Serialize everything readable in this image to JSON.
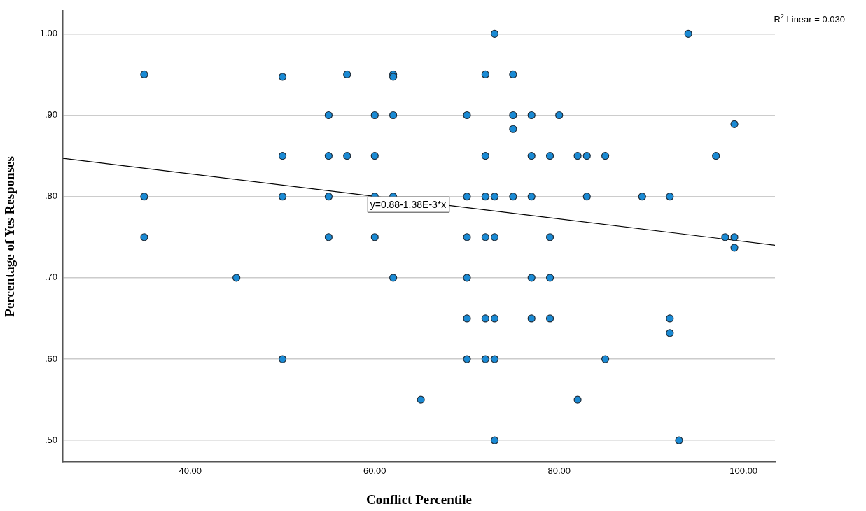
{
  "chart_data": {
    "type": "scatter",
    "xlabel": "Conflict Percentile",
    "ylabel": "Percentage of Yes Responses",
    "xlim": [
      26.2,
      103.4
    ],
    "ylim": [
      0.4735,
      1.028
    ],
    "xticks": [
      {
        "value": 40,
        "label": "40.00"
      },
      {
        "value": 60,
        "label": "60.00"
      },
      {
        "value": 80,
        "label": "80.00"
      },
      {
        "value": 100,
        "label": "100.00"
      }
    ],
    "yticks": [
      {
        "value": 0.5,
        "label": ".50"
      },
      {
        "value": 0.6,
        "label": ".60"
      },
      {
        "value": 0.7,
        "label": ".70"
      },
      {
        "value": 0.8,
        "label": ".80"
      },
      {
        "value": 0.9,
        "label": ".90"
      },
      {
        "value": 1.0,
        "label": "1.00"
      }
    ],
    "grid": "y",
    "legend": false,
    "series": [
      {
        "color": "#1a8ad4",
        "marker": "circle",
        "x": [
          73,
          94,
          35,
          50,
          57,
          62,
          62,
          72,
          75,
          55,
          60,
          62,
          70,
          75,
          77,
          80,
          75,
          99,
          50,
          55,
          57,
          60,
          72,
          77,
          79,
          82,
          83,
          85,
          97,
          35,
          50,
          55,
          60,
          62,
          70,
          72,
          73,
          75,
          77,
          83,
          89,
          92,
          35,
          55,
          60,
          70,
          72,
          73,
          79,
          98,
          99,
          99,
          45,
          62,
          70,
          77,
          79,
          70,
          72,
          73,
          77,
          79,
          92,
          92,
          50,
          70,
          72,
          73,
          85,
          65,
          82,
          73,
          93
        ],
        "values": [
          1.0,
          1.0,
          0.95,
          0.947,
          0.95,
          0.95,
          0.947,
          0.95,
          0.95,
          0.9,
          0.9,
          0.9,
          0.9,
          0.9,
          0.9,
          0.9,
          0.883,
          0.889,
          0.85,
          0.85,
          0.85,
          0.85,
          0.85,
          0.85,
          0.85,
          0.85,
          0.85,
          0.85,
          0.85,
          0.8,
          0.8,
          0.8,
          0.8,
          0.8,
          0.8,
          0.8,
          0.8,
          0.8,
          0.8,
          0.8,
          0.8,
          0.8,
          0.75,
          0.75,
          0.75,
          0.75,
          0.75,
          0.75,
          0.75,
          0.75,
          0.75,
          0.737,
          0.7,
          0.7,
          0.7,
          0.7,
          0.7,
          0.65,
          0.65,
          0.65,
          0.65,
          0.65,
          0.65,
          0.632,
          0.6,
          0.6,
          0.6,
          0.6,
          0.6,
          0.55,
          0.55,
          0.5,
          0.5
        ]
      },
      {
        "type": "line",
        "marker": "none",
        "color": "#000000",
        "x": [
          26.2,
          103.4
        ],
        "values": [
          0.847,
          0.74
        ]
      }
    ],
    "annotations": [
      {
        "text": "y=0.88-1.38E-3*x",
        "x": 59.2,
        "y": 0.8
      },
      "R$^{2}$ Linear = 0.030"
    ]
  }
}
